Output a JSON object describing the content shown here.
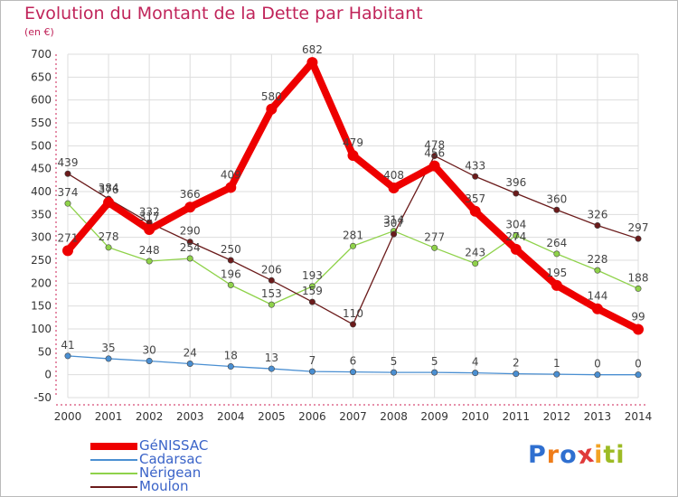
{
  "header": {
    "title": "Evolution du Montant de la Dette par Habitant",
    "unit": "(en €)"
  },
  "logo": {
    "letters": [
      "P",
      "r",
      "o",
      "x",
      "i",
      "t",
      "i"
    ],
    "colors": [
      "#2f6fd0",
      "#ef7d1a",
      "#2f6fd0",
      "#e03a3a",
      "#f2a323",
      "#9dbb25",
      "#9dbb25"
    ],
    "alt": "Proxiti"
  },
  "chart_data": {
    "type": "line",
    "title": "Evolution du Montant de la Dette par Habitant",
    "ylabel": "(en €)",
    "xlabel": "",
    "ylim": [
      -50,
      700
    ],
    "yticks": [
      -50,
      0,
      50,
      100,
      150,
      200,
      250,
      300,
      350,
      400,
      450,
      500,
      550,
      600,
      650,
      700
    ],
    "categories": [
      "2000",
      "2001",
      "2002",
      "2003",
      "2004",
      "2005",
      "2006",
      "2007",
      "2008",
      "2009",
      "2010",
      "2011",
      "2012",
      "2013",
      "2014"
    ],
    "grid": true,
    "series": [
      {
        "name": "GéNISSAC",
        "color": "#ee0000",
        "values": [
          271,
          376,
          317,
          366,
          409,
          580,
          682,
          479,
          408,
          456,
          357,
          274,
          195,
          144,
          99
        ]
      },
      {
        "name": "Cadarsac",
        "color": "#4a8fd2",
        "values": [
          41,
          35,
          30,
          24,
          18,
          13,
          7,
          6,
          5,
          5,
          4,
          2,
          1,
          0,
          0
        ]
      },
      {
        "name": "Nérigean",
        "color": "#8fd24a",
        "values": [
          374,
          278,
          248,
          254,
          196,
          153,
          193,
          281,
          314,
          277,
          243,
          304,
          264,
          228,
          188
        ]
      },
      {
        "name": "Moulon",
        "color": "#6b1b1b",
        "values": [
          439,
          384,
          332,
          290,
          250,
          206,
          159,
          110,
          307,
          478,
          433,
          396,
          360,
          326,
          297
        ]
      }
    ]
  }
}
